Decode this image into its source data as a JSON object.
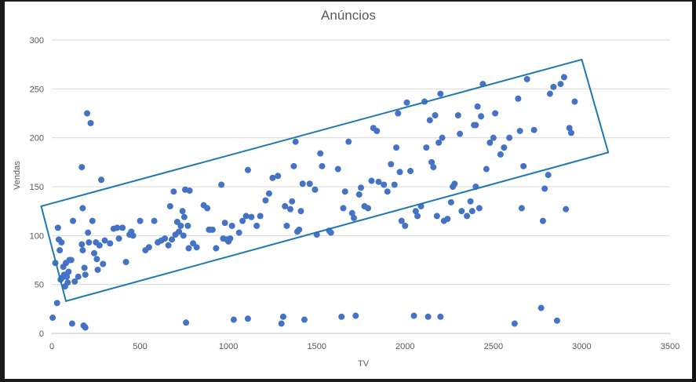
{
  "chart_data": {
    "type": "scatter",
    "title": "Anúncios",
    "xlabel": "TV",
    "ylabel": "Vendas",
    "xlim": [
      0,
      3500
    ],
    "ylim": [
      0,
      300
    ],
    "xticks": [
      0,
      500,
      1000,
      1500,
      2000,
      2500,
      3000,
      3500
    ],
    "yticks": [
      0,
      50,
      100,
      150,
      200,
      250,
      300
    ],
    "grid": "horizontal",
    "marker_color": "#4472c4",
    "annotation_color": "#1f77b4",
    "annotation_box": [
      [
        -60,
        130
      ],
      [
        80,
        33
      ],
      [
        3150,
        185
      ],
      [
        3000,
        280
      ]
    ],
    "series": [
      {
        "points": [
          [
            5,
            16
          ],
          [
            20,
            72
          ],
          [
            30,
            31
          ],
          [
            35,
            108
          ],
          [
            40,
            96
          ],
          [
            45,
            85
          ],
          [
            50,
            55
          ],
          [
            55,
            93
          ],
          [
            60,
            57
          ],
          [
            65,
            68
          ],
          [
            70,
            60
          ],
          [
            75,
            48
          ],
          [
            80,
            72
          ],
          [
            85,
            58
          ],
          [
            90,
            52
          ],
          [
            95,
            63
          ],
          [
            100,
            75
          ],
          [
            110,
            75
          ],
          [
            115,
            10
          ],
          [
            120,
            115
          ],
          [
            130,
            53
          ],
          [
            150,
            58
          ],
          [
            170,
            91
          ],
          [
            170,
            170
          ],
          [
            175,
            128
          ],
          [
            175,
            85
          ],
          [
            180,
            8
          ],
          [
            185,
            67
          ],
          [
            190,
            60
          ],
          [
            190,
            6
          ],
          [
            200,
            225
          ],
          [
            205,
            103
          ],
          [
            210,
            93
          ],
          [
            220,
            215
          ],
          [
            230,
            115
          ],
          [
            240,
            82
          ],
          [
            250,
            93
          ],
          [
            255,
            76
          ],
          [
            260,
            65
          ],
          [
            270,
            90
          ],
          [
            280,
            157
          ],
          [
            290,
            71
          ],
          [
            300,
            95
          ],
          [
            330,
            92
          ],
          [
            350,
            107
          ],
          [
            370,
            108
          ],
          [
            380,
            97
          ],
          [
            400,
            108
          ],
          [
            420,
            73
          ],
          [
            440,
            101
          ],
          [
            450,
            104
          ],
          [
            460,
            100
          ],
          [
            500,
            115
          ],
          [
            530,
            85
          ],
          [
            550,
            88
          ],
          [
            580,
            115
          ],
          [
            600,
            93
          ],
          [
            620,
            95
          ],
          [
            640,
            97
          ],
          [
            660,
            90
          ],
          [
            670,
            130
          ],
          [
            680,
            96
          ],
          [
            690,
            145
          ],
          [
            700,
            101
          ],
          [
            710,
            114
          ],
          [
            720,
            104
          ],
          [
            730,
            110
          ],
          [
            740,
            125
          ],
          [
            745,
            100
          ],
          [
            750,
            119
          ],
          [
            755,
            147
          ],
          [
            760,
            11
          ],
          [
            770,
            110
          ],
          [
            775,
            87
          ],
          [
            780,
            146
          ],
          [
            800,
            92
          ],
          [
            820,
            88
          ],
          [
            860,
            131
          ],
          [
            880,
            128
          ],
          [
            890,
            106
          ],
          [
            900,
            106
          ],
          [
            910,
            106
          ],
          [
            930,
            87
          ],
          [
            960,
            152
          ],
          [
            970,
            97
          ],
          [
            980,
            113
          ],
          [
            990,
            96
          ],
          [
            1000,
            94
          ],
          [
            1010,
            97
          ],
          [
            1020,
            110
          ],
          [
            1030,
            14
          ],
          [
            1060,
            103
          ],
          [
            1080,
            115
          ],
          [
            1100,
            120
          ],
          [
            1110,
            15
          ],
          [
            1110,
            167
          ],
          [
            1130,
            119
          ],
          [
            1160,
            110
          ],
          [
            1180,
            120
          ],
          [
            1210,
            136
          ],
          [
            1230,
            143
          ],
          [
            1250,
            159
          ],
          [
            1280,
            161
          ],
          [
            1300,
            10
          ],
          [
            1310,
            17
          ],
          [
            1320,
            130
          ],
          [
            1330,
            110
          ],
          [
            1350,
            127
          ],
          [
            1360,
            135
          ],
          [
            1370,
            171
          ],
          [
            1380,
            196
          ],
          [
            1390,
            104
          ],
          [
            1400,
            106
          ],
          [
            1410,
            125
          ],
          [
            1420,
            153
          ],
          [
            1430,
            14
          ],
          [
            1460,
            153
          ],
          [
            1490,
            147
          ],
          [
            1500,
            101
          ],
          [
            1520,
            184
          ],
          [
            1530,
            171
          ],
          [
            1570,
            105
          ],
          [
            1580,
            103
          ],
          [
            1620,
            168
          ],
          [
            1640,
            17
          ],
          [
            1650,
            128
          ],
          [
            1660,
            145
          ],
          [
            1680,
            196
          ],
          [
            1700,
            123
          ],
          [
            1710,
            118
          ],
          [
            1720,
            18
          ],
          [
            1740,
            142
          ],
          [
            1750,
            149
          ],
          [
            1770,
            130
          ],
          [
            1790,
            128
          ],
          [
            1810,
            156
          ],
          [
            1820,
            210
          ],
          [
            1840,
            207
          ],
          [
            1850,
            155
          ],
          [
            1880,
            152
          ],
          [
            1900,
            145
          ],
          [
            1920,
            173
          ],
          [
            1940,
            152
          ],
          [
            1950,
            190
          ],
          [
            1960,
            225
          ],
          [
            1970,
            165
          ],
          [
            1980,
            115
          ],
          [
            2000,
            110
          ],
          [
            2010,
            236
          ],
          [
            2030,
            166
          ],
          [
            2050,
            18
          ],
          [
            2060,
            125
          ],
          [
            2070,
            120
          ],
          [
            2090,
            130
          ],
          [
            2110,
            237
          ],
          [
            2120,
            190
          ],
          [
            2130,
            17
          ],
          [
            2140,
            218
          ],
          [
            2150,
            175
          ],
          [
            2160,
            170
          ],
          [
            2170,
            223
          ],
          [
            2180,
            120
          ],
          [
            2190,
            195
          ],
          [
            2200,
            17
          ],
          [
            2200,
            245
          ],
          [
            2210,
            200
          ],
          [
            2220,
            115
          ],
          [
            2240,
            117
          ],
          [
            2260,
            134
          ],
          [
            2270,
            150
          ],
          [
            2280,
            153
          ],
          [
            2300,
            223
          ],
          [
            2310,
            204
          ],
          [
            2320,
            125
          ],
          [
            2350,
            120
          ],
          [
            2370,
            135
          ],
          [
            2380,
            125
          ],
          [
            2390,
            213
          ],
          [
            2400,
            150
          ],
          [
            2400,
            213
          ],
          [
            2410,
            232
          ],
          [
            2420,
            128
          ],
          [
            2430,
            222
          ],
          [
            2440,
            255
          ],
          [
            2460,
            168
          ],
          [
            2480,
            195
          ],
          [
            2500,
            200
          ],
          [
            2510,
            225
          ],
          [
            2540,
            183
          ],
          [
            2560,
            190
          ],
          [
            2590,
            200
          ],
          [
            2620,
            10
          ],
          [
            2640,
            240
          ],
          [
            2650,
            207
          ],
          [
            2660,
            128
          ],
          [
            2670,
            171
          ],
          [
            2690,
            260
          ],
          [
            2730,
            208
          ],
          [
            2770,
            26
          ],
          [
            2780,
            115
          ],
          [
            2790,
            148
          ],
          [
            2810,
            162
          ],
          [
            2820,
            245
          ],
          [
            2840,
            252
          ],
          [
            2860,
            13
          ],
          [
            2880,
            255
          ],
          [
            2900,
            262
          ],
          [
            2910,
            127
          ],
          [
            2930,
            210
          ],
          [
            2940,
            205
          ],
          [
            2960,
            237
          ]
        ]
      }
    ]
  }
}
